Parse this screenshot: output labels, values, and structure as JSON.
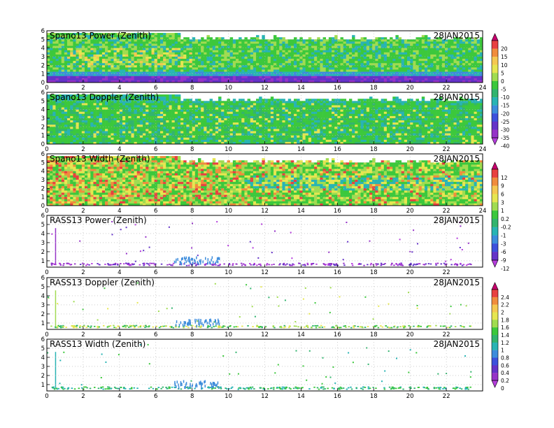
{
  "chart_data": [
    {
      "type": "heatmap",
      "title": "Spano13 Power (Zenith)",
      "date": "28JAN2015",
      "x_ticks": [
        "0",
        "2",
        "4",
        "6",
        "8",
        "10",
        "12",
        "14",
        "16",
        "18",
        "20",
        "22",
        "24"
      ],
      "y_ticks": [
        "0",
        "1",
        "2",
        "3",
        "4",
        "5",
        "6"
      ],
      "xlim": [
        0,
        24
      ],
      "ylim": [
        0,
        6
      ],
      "grid": true,
      "colorbar": "scale1"
    },
    {
      "type": "heatmap",
      "title": "Spano13 Doppler (Zenith)",
      "date": "28JAN2015",
      "x_ticks": [
        "0",
        "2",
        "4",
        "6",
        "8",
        "10",
        "12",
        "14",
        "16",
        "18",
        "20",
        "22",
        "24"
      ],
      "y_ticks": [
        "0",
        "1",
        "2",
        "3",
        "4",
        "5",
        "6"
      ],
      "xlim": [
        0,
        24
      ],
      "ylim": [
        0,
        6
      ],
      "grid": true,
      "colorbar": "scale1"
    },
    {
      "type": "heatmap",
      "title": "Spano13 Width (Zenith)",
      "date": "28JAN2015",
      "x_ticks": [
        "0",
        "2",
        "4",
        "6",
        "8",
        "10",
        "12",
        "14",
        "16",
        "18",
        "20",
        "22",
        "24"
      ],
      "y_ticks": [
        "0",
        "1",
        "2",
        "3",
        "4",
        "5",
        "6"
      ],
      "xlim": [
        0,
        24
      ],
      "ylim": [
        0,
        6
      ],
      "grid": true,
      "colorbar": "scale2"
    },
    {
      "type": "scatter",
      "title": "RASS13 Power (Zenith)",
      "date": "28JAN2015",
      "x_ticks": [
        "0",
        "2",
        "4",
        "6",
        "8",
        "10",
        "12",
        "14",
        "16",
        "18",
        "20",
        "22"
      ],
      "y_ticks": [
        "1",
        "2",
        "3",
        "4",
        "5",
        "6"
      ],
      "xlim": [
        0,
        24
      ],
      "ylim": [
        0.3,
        6
      ],
      "grid": true,
      "colorbar": "scale2"
    },
    {
      "type": "scatter",
      "title": "RASS13 Doppler (Zenith)",
      "date": "28JAN2015",
      "x_ticks": [
        "0",
        "2",
        "4",
        "6",
        "8",
        "10",
        "12",
        "14",
        "16",
        "18",
        "20",
        "22"
      ],
      "y_ticks": [
        "1",
        "2",
        "3",
        "4",
        "5",
        "6"
      ],
      "xlim": [
        0,
        24
      ],
      "ylim": [
        0.3,
        6
      ],
      "grid": true,
      "colorbar": "scale3"
    },
    {
      "type": "scatter",
      "title": "RASS13 Width (Zenith)",
      "date": "28JAN2015",
      "x_ticks": [
        "0",
        "2",
        "4",
        "6",
        "8",
        "10",
        "12",
        "14",
        "16",
        "18",
        "20",
        "22"
      ],
      "y_ticks": [
        "1",
        "2",
        "3",
        "4",
        "5",
        "6"
      ],
      "xlim": [
        0,
        24
      ],
      "ylim": [
        0.3,
        6
      ],
      "grid": true,
      "colorbar": "scale3"
    }
  ],
  "colorbars": {
    "scale1": {
      "labels": [
        "20",
        "15",
        "10",
        "5",
        "0",
        "-5",
        "-10",
        "-15",
        "-20",
        "-25",
        "-30",
        "-35",
        "-40"
      ],
      "colors": [
        "#c8006e",
        "#e84040",
        "#f08c3c",
        "#f5c850",
        "#e6e650",
        "#a0dc50",
        "#3cc83c",
        "#32b46e",
        "#28b4b4",
        "#3c8cdc",
        "#3c50dc",
        "#6432c8",
        "#9632c8",
        "#b43cdc"
      ]
    },
    "scale2": {
      "labels": [
        "12",
        "9",
        "6",
        "3",
        "1",
        "0.2",
        "-0.2",
        "-1",
        "-3",
        "-6",
        "-9",
        "-12"
      ],
      "colors": [
        "#c8006e",
        "#e84040",
        "#f08c3c",
        "#f5c850",
        "#e6e650",
        "#a0dc50",
        "#3cc83c",
        "#32b46e",
        "#28b4b4",
        "#3c8cdc",
        "#3c50dc",
        "#6432c8",
        "#b43cdc"
      ]
    },
    "scale3": {
      "labels": [
        "2.4",
        "2.2",
        "2",
        "1.8",
        "1.6",
        "1.4",
        "1.2",
        "1",
        "0.8",
        "0.6",
        "0.4",
        "0.2",
        "0"
      ],
      "colors": [
        "#c8006e",
        "#e84040",
        "#f08c3c",
        "#f5c850",
        "#e6e650",
        "#a0dc50",
        "#3cc83c",
        "#32b46e",
        "#28b4b4",
        "#3c8cdc",
        "#3c50dc",
        "#6432c8",
        "#9632c8",
        "#b43cdc"
      ]
    }
  }
}
